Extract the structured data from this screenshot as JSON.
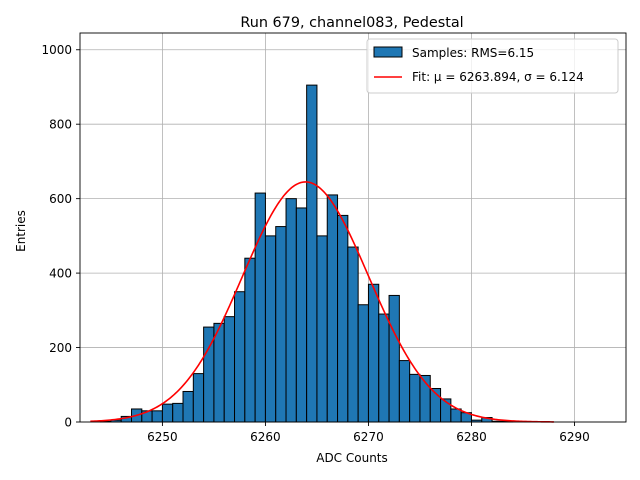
{
  "chart_data": {
    "type": "bar",
    "title": "Run 679, channel083, Pedestal",
    "xlabel": "ADC Counts",
    "ylabel": "Entries",
    "xlim": [
      6242,
      6295
    ],
    "ylim": [
      0,
      1045
    ],
    "xticks": [
      6250,
      6260,
      6270,
      6280,
      6290
    ],
    "yticks": [
      0,
      200,
      400,
      600,
      800,
      1000
    ],
    "grid": true,
    "legend_position": "top-right",
    "colors": {
      "bars": "#1f77b4",
      "bar_edge": "#000000",
      "fit": "#ff0000",
      "grid": "#b0b0b0"
    },
    "histogram": {
      "name": "Samples: RMS=6.15",
      "bin_width": 1,
      "bin_starts": [
        6243,
        6244,
        6245,
        6246,
        6247,
        6248,
        6249,
        6250,
        6251,
        6252,
        6253,
        6254,
        6255,
        6256,
        6257,
        6258,
        6259,
        6260,
        6261,
        6262,
        6263,
        6264,
        6265,
        6266,
        6267,
        6268,
        6269,
        6270,
        6271,
        6272,
        6273,
        6274,
        6275,
        6276,
        6277,
        6278,
        6279,
        6280,
        6281,
        6282,
        6283
      ],
      "values": [
        0,
        2,
        5,
        15,
        35,
        30,
        30,
        48,
        50,
        82,
        130,
        255,
        265,
        283,
        350,
        440,
        615,
        500,
        525,
        600,
        575,
        905,
        500,
        610,
        555,
        470,
        315,
        370,
        290,
        340,
        165,
        128,
        125,
        90,
        62,
        35,
        25,
        5,
        12,
        2,
        2
      ]
    },
    "fit": {
      "name": "Fit: μ = 6263.894, σ = 6.124",
      "mu": 6263.894,
      "sigma": 6.124,
      "amplitude": 645,
      "x_range": [
        6243,
        6288
      ]
    }
  }
}
